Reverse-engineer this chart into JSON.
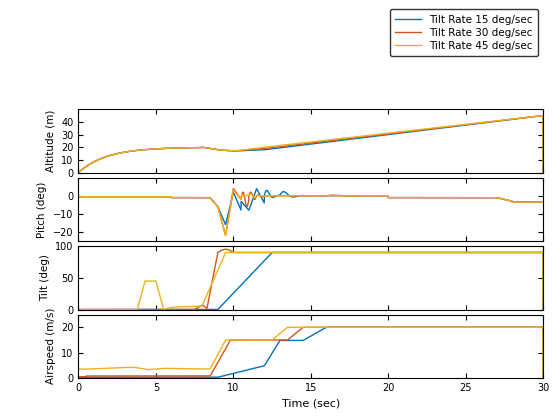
{
  "legend_labels": [
    "Tilt Rate 15 deg/sec",
    "Tilt Rate 30 deg/sec",
    "Tilt Rate 45 deg/sec"
  ],
  "colors": [
    "#0072BD",
    "#D95319",
    "#EDB120"
  ],
  "xlabel": "Time (sec)",
  "ylabels": [
    "Altitude (m)",
    "Pitch (deg)",
    "Tilt (deg)",
    "Airspeed (m/s)"
  ],
  "xlim": [
    0,
    30
  ],
  "alt_ylim": [
    0,
    50
  ],
  "pitch_ylim": [
    -25,
    10
  ],
  "tilt_ylim": [
    0,
    100
  ],
  "airspeed_ylim": [
    0,
    25
  ],
  "alt_yticks": [
    0,
    10,
    20,
    30,
    40
  ],
  "pitch_yticks": [
    -20,
    -10,
    0
  ],
  "tilt_yticks": [
    0,
    50,
    100
  ],
  "airspeed_yticks": [
    0,
    10,
    20
  ],
  "xticks": [
    0,
    5,
    10,
    15,
    20,
    25,
    30
  ],
  "figsize": [
    5.6,
    4.2
  ],
  "dpi": 100
}
